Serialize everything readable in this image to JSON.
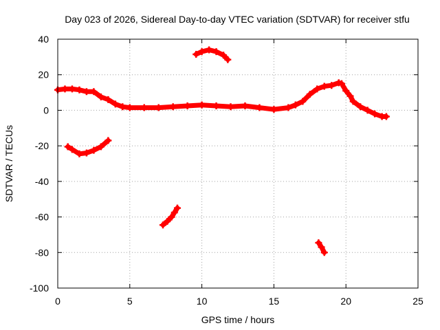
{
  "chart_data": {
    "type": "scatter",
    "title": "Day 023 of 2026, Sidereal Day-to-day VTEC variation (SDTVAR) for receiver stfu",
    "xlabel": "GPS time / hours",
    "ylabel": "SDTVAR / TECUs",
    "xlim": [
      0,
      25
    ],
    "ylim": [
      -100,
      40
    ],
    "xticks": [
      0,
      5,
      10,
      15,
      20,
      25
    ],
    "yticks": [
      -100,
      -80,
      -60,
      -40,
      -20,
      0,
      20,
      40
    ],
    "grid": true,
    "series_color": "#ff0000",
    "series": [
      {
        "name": "main-trace",
        "points": [
          [
            0,
            11.5
          ],
          [
            0.5,
            12
          ],
          [
            1,
            12
          ],
          [
            1.5,
            11.5
          ],
          [
            2,
            10.5
          ],
          [
            2.5,
            10.5
          ],
          [
            3,
            7.5
          ],
          [
            3.5,
            6
          ],
          [
            4,
            3.5
          ],
          [
            4.5,
            2
          ],
          [
            5,
            1.5
          ],
          [
            6,
            1.5
          ],
          [
            7,
            1.5
          ],
          [
            8,
            2
          ],
          [
            9,
            2.5
          ],
          [
            10,
            3
          ],
          [
            11,
            2.5
          ],
          [
            12,
            2
          ],
          [
            13,
            2.5
          ],
          [
            14,
            1.5
          ],
          [
            15,
            0.5
          ],
          [
            16,
            1.5
          ],
          [
            16.5,
            3
          ],
          [
            17,
            5
          ],
          [
            17.5,
            9
          ],
          [
            18,
            12
          ],
          [
            18.5,
            13.5
          ],
          [
            19,
            14
          ],
          [
            19.5,
            15.5
          ],
          [
            19.7,
            15
          ],
          [
            20,
            11
          ],
          [
            20.3,
            8
          ],
          [
            20.5,
            5
          ],
          [
            21,
            2
          ],
          [
            21.5,
            0
          ],
          [
            22,
            -2
          ],
          [
            22.5,
            -3.5
          ],
          [
            22.8,
            -3.5
          ]
        ]
      },
      {
        "name": "arc-high",
        "points": [
          [
            9.6,
            31.5
          ],
          [
            10,
            33
          ],
          [
            10.5,
            34
          ],
          [
            11,
            33
          ],
          [
            11.5,
            31
          ],
          [
            11.8,
            28.5
          ]
        ]
      },
      {
        "name": "arc-negative-20",
        "points": [
          [
            0.7,
            -20.5
          ],
          [
            1,
            -22
          ],
          [
            1.5,
            -24.5
          ],
          [
            2,
            -24
          ],
          [
            2.5,
            -22.5
          ],
          [
            3,
            -20.5
          ],
          [
            3.5,
            -17
          ]
        ]
      },
      {
        "name": "arc-negative-60",
        "points": [
          [
            7.3,
            -64.5
          ],
          [
            7.6,
            -62.5
          ],
          [
            7.9,
            -60
          ],
          [
            8.1,
            -57.5
          ],
          [
            8.3,
            -55
          ]
        ]
      },
      {
        "name": "arc-negative-80",
        "points": [
          [
            18.1,
            -74.5
          ],
          [
            18.3,
            -77
          ],
          [
            18.5,
            -80
          ]
        ]
      }
    ]
  }
}
